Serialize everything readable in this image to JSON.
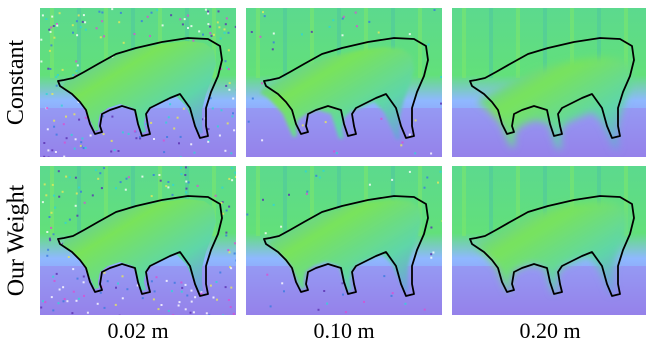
{
  "row_labels": [
    "Constant",
    "Our Weight"
  ],
  "column_labels": [
    "0.02 m",
    "0.10 m",
    "0.20 m"
  ],
  "colors": {
    "background": "#ffffff",
    "ground": "#8e7be6",
    "wall": "#5fe07a",
    "cow_body": "#74e35b",
    "outline": "#000000"
  },
  "panels": [
    {
      "row": "Constant",
      "column": "0.02 m",
      "noise": "high",
      "blur": "low",
      "outline_fit": "tight"
    },
    {
      "row": "Constant",
      "column": "0.10 m",
      "noise": "low",
      "blur": "medium",
      "outline_fit": "loose"
    },
    {
      "row": "Constant",
      "column": "0.20 m",
      "noise": "none",
      "blur": "high",
      "outline_fit": "poor"
    },
    {
      "row": "Our Weight",
      "column": "0.02 m",
      "noise": "high",
      "blur": "low",
      "outline_fit": "tight"
    },
    {
      "row": "Our Weight",
      "column": "0.10 m",
      "noise": "low",
      "blur": "medium",
      "outline_fit": "tight"
    },
    {
      "row": "Our Weight",
      "column": "0.20 m",
      "noise": "none",
      "blur": "high",
      "outline_fit": "tight"
    }
  ]
}
